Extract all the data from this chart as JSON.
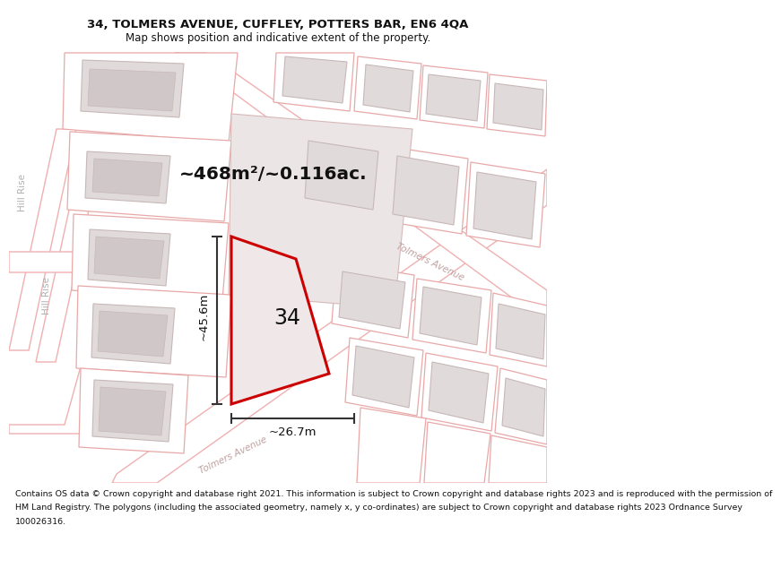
{
  "title_line1": "34, TOLMERS AVENUE, CUFFLEY, POTTERS BAR, EN6 4QA",
  "title_line2": "Map shows position and indicative extent of the property.",
  "area_text": "~468m²/~0.116ac.",
  "label_34": "34",
  "dim_vertical": "~45.6m",
  "dim_horizontal": "~26.7m",
  "street_lower": "Tolmers Avenue",
  "street_upper": "Tolmers Avenue",
  "hill_rise_1": "Hill Rise",
  "hill_rise_2": "Hill Rise",
  "footer_lines": [
    "Contains OS data © Crown copyright and database right 2021. This information is subject to Crown copyright and database rights 2023 and is reproduced with the permission of",
    "HM Land Registry. The polygons (including the associated geometry, namely x, y co-ordinates) are subject to Crown copyright and database rights 2023 Ordnance Survey",
    "100026316."
  ],
  "bg_color": "#ffffff",
  "map_bg_color": "#ffffff",
  "road_fill": "#ffffff",
  "road_edge": "#f0b0b0",
  "plot_outline_color": "#e8a8a8",
  "building_fill": "#e0dada",
  "building_edge": "#c8b8b8",
  "inner_building_fill": "#d0c8c8",
  "highlight_fill": "#f0e8e8",
  "highlight_edge": "#cc0000",
  "dim_color": "#333333",
  "text_color": "#111111",
  "street_color": "#c0a0a0",
  "hill_color": "#b0b0b0",
  "footer_color": "#111111"
}
